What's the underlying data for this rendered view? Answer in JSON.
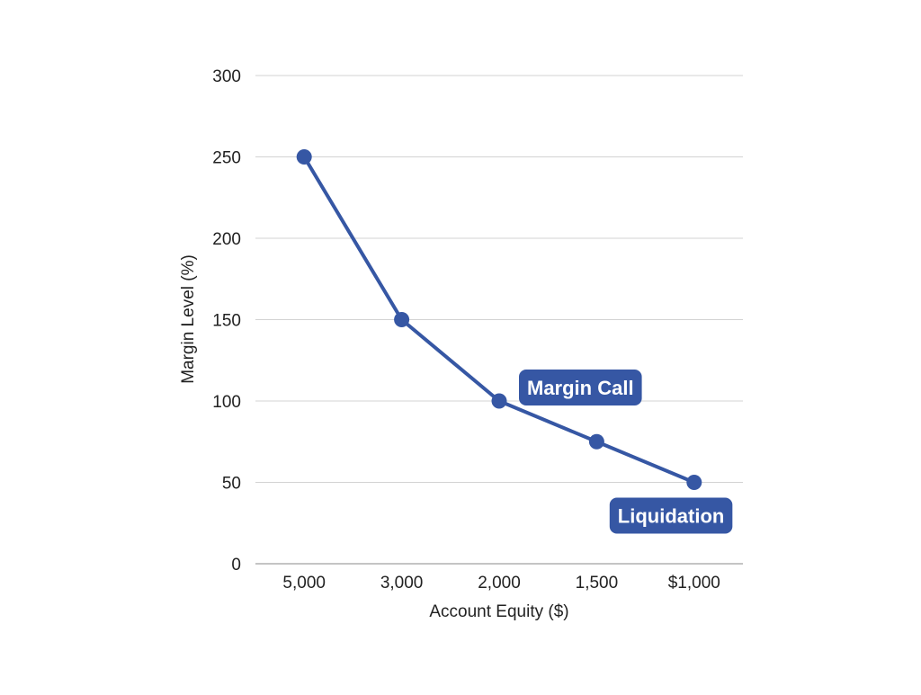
{
  "chart_data": {
    "type": "line",
    "title": "",
    "xlabel": "Account Equity ($)",
    "ylabel": "Margin Level (%)",
    "categories": [
      "5,000",
      "3,000",
      "2,000",
      "1,500",
      "$1,000"
    ],
    "series": [
      {
        "values": [
          250,
          150,
          100,
          75,
          50
        ]
      }
    ],
    "ylim": [
      0,
      300
    ],
    "yticks": [
      0,
      50,
      100,
      150,
      200,
      250,
      300
    ],
    "grid": true,
    "legend": "none",
    "annotations": [
      {
        "text": "Margin Call",
        "category": "2,000",
        "value": 100
      },
      {
        "text": "Liquidation",
        "category": "$1,000",
        "value": 50
      }
    ],
    "colors": {
      "line": "#3657a4",
      "callout": "#3657a4",
      "grid": "#d3d3d3",
      "axis": "#888888"
    }
  }
}
